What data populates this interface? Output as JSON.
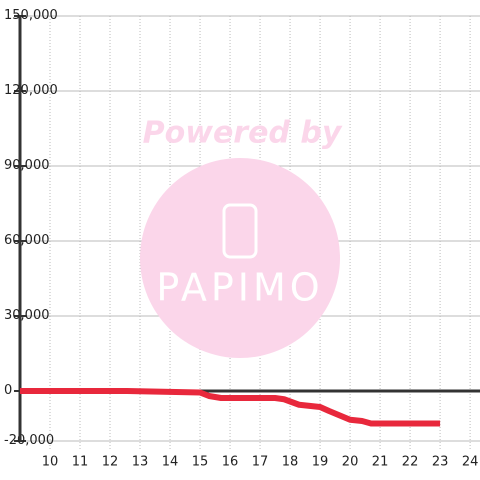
{
  "chart_data": {
    "type": "line",
    "watermark": {
      "title": "Powered by",
      "logo_text": "PAPIMO"
    },
    "x": [
      9,
      12.5,
      15,
      15.3,
      15.7,
      17.5,
      17.8,
      18.3,
      19,
      19.3,
      20,
      20.4,
      20.7,
      23
    ],
    "values": [
      0,
      0,
      -600,
      -2000,
      -2800,
      -2800,
      -3300,
      -5500,
      -6400,
      -8000,
      -11500,
      -12000,
      -13000,
      -13000
    ],
    "color": "#e8283c",
    "xlim": [
      9,
      24.33
    ],
    "xticks": [
      10,
      11,
      12,
      13,
      14,
      15,
      16,
      17,
      18,
      19,
      20,
      21,
      22,
      23,
      24
    ],
    "ylim": [
      -20000,
      150000
    ],
    "yticks": [
      {
        "value": -20000,
        "label": "-20,000"
      },
      0,
      {
        "value": 30000,
        "label": "30,000"
      },
      {
        "value": 60000,
        "label": "60,000"
      },
      {
        "value": 90000,
        "label": "90,000"
      },
      {
        "value": 120000,
        "label": "120,000"
      },
      {
        "value": 150000,
        "label": "150,000"
      }
    ],
    "grid": true
  }
}
